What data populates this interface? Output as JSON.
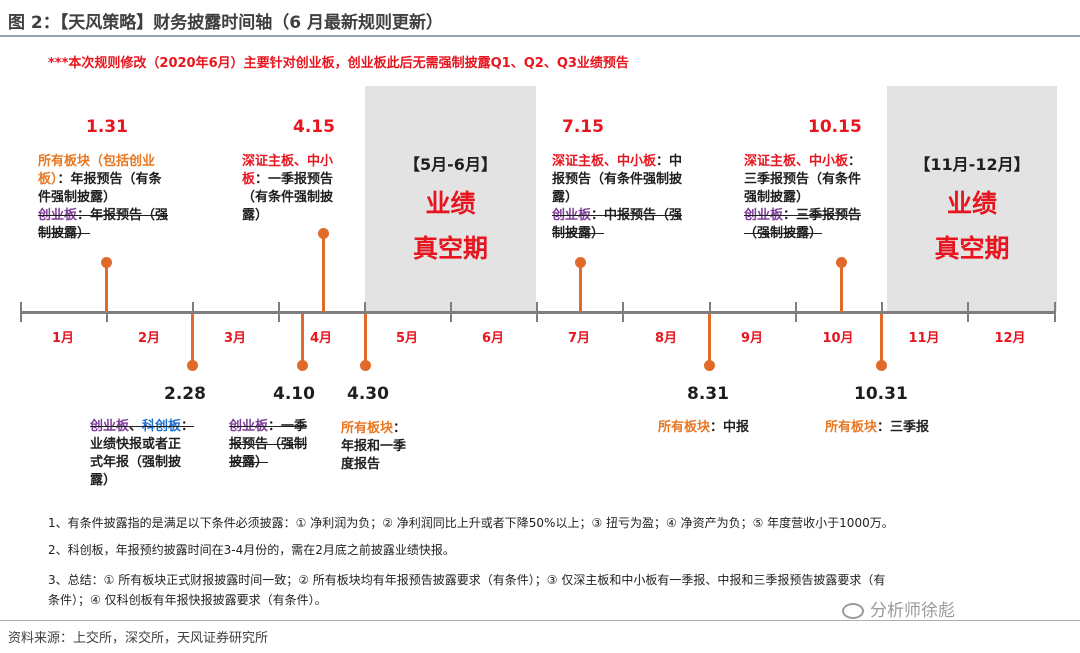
{
  "header": {
    "title": "图 2：【天风策略】财务披露时间轴（6 月最新规则更新）",
    "notice": "***本次规则修改（2020年6月）主要针对创业板，创业板此后无需强制披露Q1、Q2、Q3业绩预告"
  },
  "colors": {
    "red": "#e8151f",
    "orange": "#e06a2a",
    "axis": "#7f7f7f",
    "shade": "#e3e3e3",
    "purple": "#7d3f98",
    "blue": "#1f6fd1"
  },
  "months": [
    "1月",
    "2月",
    "3月",
    "4月",
    "5月",
    "6月",
    "7月",
    "8月",
    "9月",
    "10月",
    "11月",
    "12月"
  ],
  "vacuum": [
    {
      "title": "【5月-6月】",
      "line1": "业绩",
      "line2": "真空期"
    },
    {
      "title": "【11月-12月】",
      "line1": "业绩",
      "line2": "真空期"
    }
  ],
  "top_events": {
    "jan31": {
      "date": "1.31",
      "l1": "所有板块（包括创业",
      "l2": "板）",
      "l3": "：年报预告（有条",
      "l4": "件强制披露）",
      "l5": "创业板",
      "l6": "：年报预告（强",
      "l7": "制披露）"
    },
    "apr15": {
      "date": "4.15",
      "l1": "深证主板、中小",
      "l2": "板",
      "l3": "：一季报预告",
      "l4": "（有条件强制披",
      "l5": "露）"
    },
    "jul15": {
      "date": "7.15",
      "l1": "深证主板、中小板",
      "l2": "：中",
      "l3": "报预告（有条件强制披",
      "l4": "露）",
      "l5": "创业板",
      "l6": "：中报预告（强",
      "l7": "制披露）"
    },
    "oct15": {
      "date": "10.15",
      "l1": "深证主板、中小板",
      "l2": "：",
      "l3": "三季报预告（有条件",
      "l4": "强制披露）",
      "l5": "创业板",
      "l6": "：三季报预告",
      "l7": "（强制披露）"
    }
  },
  "bottom_events": {
    "feb28": {
      "date": "2.28",
      "a": "创业板",
      "b": "、",
      "c": "科创板",
      "d": "：",
      "l2": "业绩快报或者正",
      "l3": "式年报（强制披",
      "l4": "露）"
    },
    "apr10": {
      "date": "4.10",
      "a": "创业板",
      "b": "：一季",
      "l2": "报预告（强制",
      "l3": "披露）"
    },
    "apr30": {
      "date": "4.30",
      "a": "所有板块",
      "b": "：",
      "l2": "年报和一季",
      "l3": "度报告"
    },
    "aug31": {
      "date": "8.31",
      "a": "所有板块",
      "b": "：中报"
    },
    "oct31": {
      "date": "10.31",
      "a": "所有板块",
      "b": "：三季报"
    }
  },
  "notes": [
    "1、有条件披露指的是满足以下条件必须披露：① 净利润为负；② 净利润同比上升或者下降50%以上；③ 扭亏为盈；④ 净资产为负；⑤ 年度营收小于1000万。",
    "2、科创板，年报预约披露时间在3-4月份的，需在2月底之前披露业绩快报。",
    "3、总结：① 所有板块正式财报披露时间一致；② 所有板块均有年报预告披露要求（有条件）；③ 仅深主板和中小板有一季报、中报和三季报预告披露要求（有",
    "条件）；④ 仅科创板有年报快报披露要求（有条件）。"
  ],
  "source": "资料来源：上交所，深交所，天风证券研究所",
  "watermark": "分析师徐彪"
}
